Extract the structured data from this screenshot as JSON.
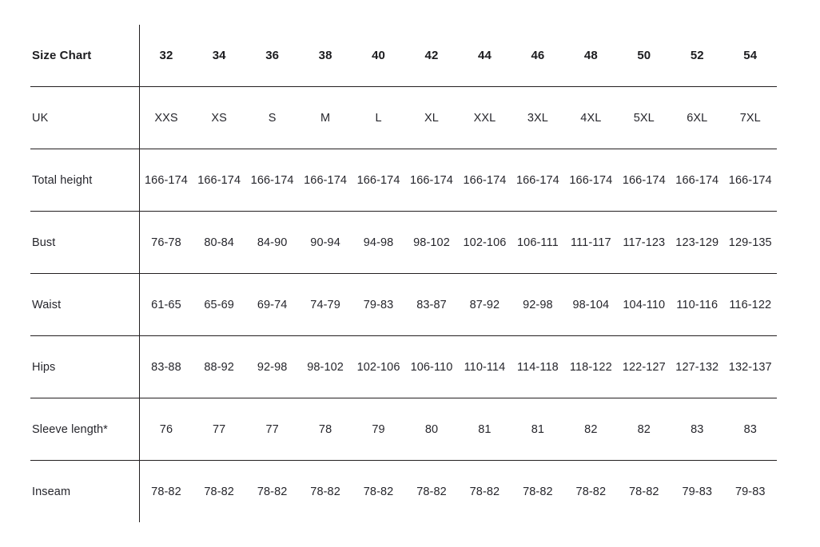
{
  "colors": {
    "background": "#ffffff",
    "text": "#26262c",
    "header_text": "#1c1c1f",
    "rule_line": "#231f20"
  },
  "chart_data": {
    "type": "table",
    "title": "Size Chart",
    "columns": [
      "32",
      "34",
      "36",
      "38",
      "40",
      "42",
      "44",
      "46",
      "48",
      "50",
      "52",
      "54"
    ],
    "rows": [
      {
        "label": "UK",
        "values": [
          "XXS",
          "XS",
          "S",
          "M",
          "L",
          "XL",
          "XXL",
          "3XL",
          "4XL",
          "5XL",
          "6XL",
          "7XL"
        ]
      },
      {
        "label": "Total height",
        "values": [
          "166-174",
          "166-174",
          "166-174",
          "166-174",
          "166-174",
          "166-174",
          "166-174",
          "166-174",
          "166-174",
          "166-174",
          "166-174",
          "166-174"
        ]
      },
      {
        "label": "Bust",
        "values": [
          "76-78",
          "80-84",
          "84-90",
          "90-94",
          "94-98",
          "98-102",
          "102-106",
          "106-111",
          "111-117",
          "117-123",
          "123-129",
          "129-135"
        ]
      },
      {
        "label": "Waist",
        "values": [
          "61-65",
          "65-69",
          "69-74",
          "74-79",
          "79-83",
          "83-87",
          "87-92",
          "92-98",
          "98-104",
          "104-110",
          "110-116",
          "116-122"
        ]
      },
      {
        "label": "Hips",
        "values": [
          "83-88",
          "88-92",
          "92-98",
          "98-102",
          "102-106",
          "106-110",
          "110-114",
          "114-118",
          "118-122",
          "122-127",
          "127-132",
          "132-137"
        ]
      },
      {
        "label": "Sleeve length*",
        "values": [
          "76",
          "77",
          "77",
          "78",
          "79",
          "80",
          "81",
          "81",
          "82",
          "82",
          "83",
          "83"
        ]
      },
      {
        "label": "Inseam",
        "values": [
          "78-82",
          "78-82",
          "78-82",
          "78-82",
          "78-82",
          "78-82",
          "78-82",
          "78-82",
          "78-82",
          "78-82",
          "79-83",
          "79-83"
        ]
      }
    ]
  }
}
